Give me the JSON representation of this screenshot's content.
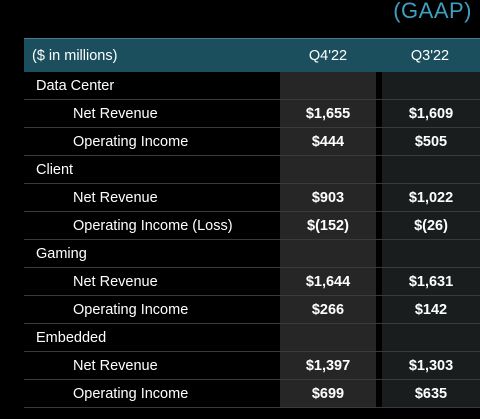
{
  "badge": "(GAAP)",
  "header": {
    "col0": "($ in millions)",
    "col1": "Q4'22",
    "col2": "Q3'22"
  },
  "rows": [
    {
      "type": "section",
      "label": "Data Center",
      "q4": "",
      "q3": ""
    },
    {
      "type": "item",
      "label": "Net Revenue",
      "q4": "$1,655",
      "q3": "$1,609"
    },
    {
      "type": "item",
      "label": "Operating Income",
      "q4": "$444",
      "q3": "$505"
    },
    {
      "type": "section",
      "label": "Client",
      "q4": "",
      "q3": ""
    },
    {
      "type": "item",
      "label": "Net Revenue",
      "q4": "$903",
      "q3": "$1,022"
    },
    {
      "type": "item",
      "label": "Operating Income (Loss)",
      "q4": "$(152)",
      "q3": "$(26)"
    },
    {
      "type": "section",
      "label": "Gaming",
      "q4": "",
      "q3": ""
    },
    {
      "type": "item",
      "label": "Net Revenue",
      "q4": "$1,644",
      "q3": "$1,631"
    },
    {
      "type": "item",
      "label": "Operating Income",
      "q4": "$266",
      "q3": "$142"
    },
    {
      "type": "section",
      "label": "Embedded",
      "q4": "",
      "q3": ""
    },
    {
      "type": "item",
      "label": "Net Revenue",
      "q4": "$1,397",
      "q3": "$1,303"
    },
    {
      "type": "item",
      "label": "Operating Income",
      "q4": "$699",
      "q3": "$635"
    }
  ]
}
